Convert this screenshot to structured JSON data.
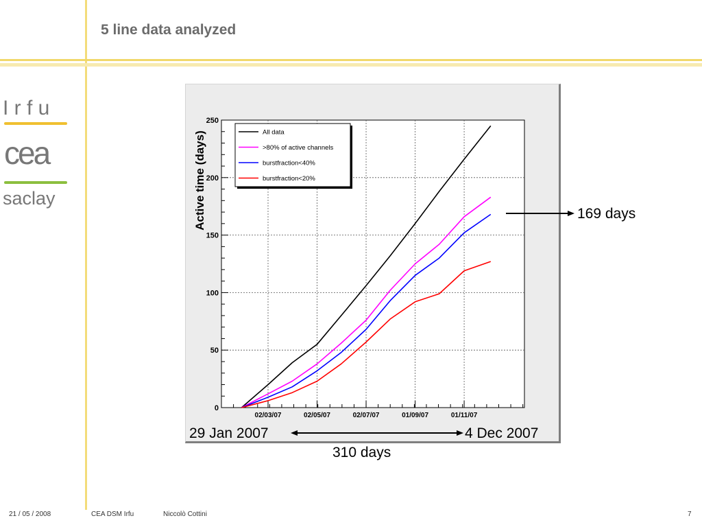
{
  "slide": {
    "title": "5 line data analyzed",
    "footer": {
      "date": "21 / 05 / 2008",
      "org": "CEA DSM Irfu",
      "author": "Niccolò Cottini",
      "page": "7"
    },
    "logo": {
      "line1": "I r f u",
      "line2": "cea",
      "line3": "saclay"
    }
  },
  "annotations": {
    "end_value": "169 days",
    "start_date": "29 Jan 2007",
    "end_date": "4 Dec 2007",
    "duration": "310 days"
  },
  "colors": {
    "accent": "#f1d86a",
    "all": "#000000",
    "active80": "#ff00ff",
    "burst40": "#0000ff",
    "burst20": "#ff0000"
  },
  "chart_data": {
    "type": "line",
    "title": "",
    "xlabel": "",
    "ylabel": "Active time (days)",
    "xlim": [
      "2007-01-03",
      "2008-01-15"
    ],
    "ylim": [
      0,
      250
    ],
    "yticks": [
      0,
      50,
      100,
      150,
      200,
      250
    ],
    "xticks": [
      "2007-03-02",
      "2007-05-02",
      "2007-07-02",
      "2007-09-01",
      "2007-11-01"
    ],
    "xtick_labels": [
      "02/03/07",
      "02/05/07",
      "02/07/07",
      "01/09/07",
      "01/11/07"
    ],
    "grid": true,
    "legend_position": "top-left",
    "series": [
      {
        "name": "All data",
        "color": "#000000",
        "x": [
          "2007-01-28",
          "2007-03-02",
          "2007-04-01",
          "2007-05-02",
          "2007-06-01",
          "2007-07-02",
          "2007-08-01",
          "2007-09-01",
          "2007-10-01",
          "2007-11-01",
          "2007-12-04"
        ],
        "y": [
          0,
          20,
          39,
          55,
          80,
          106,
          132,
          160,
          188,
          216,
          245
        ]
      },
      {
        "name": ">80% of active channels",
        "color": "#ff00ff",
        "x": [
          "2007-01-28",
          "2007-03-02",
          "2007-04-01",
          "2007-05-02",
          "2007-06-01",
          "2007-07-02",
          "2007-08-01",
          "2007-09-01",
          "2007-10-01",
          "2007-11-01",
          "2007-12-04"
        ],
        "y": [
          0,
          12,
          23,
          38,
          56,
          76,
          102,
          125,
          142,
          166,
          183
        ]
      },
      {
        "name": "burstfraction<40%",
        "color": "#0000ff",
        "x": [
          "2007-01-28",
          "2007-03-02",
          "2007-04-01",
          "2007-05-02",
          "2007-06-01",
          "2007-07-02",
          "2007-08-01",
          "2007-09-01",
          "2007-10-01",
          "2007-11-01",
          "2007-12-04"
        ],
        "y": [
          0,
          9,
          18,
          32,
          48,
          68,
          93,
          115,
          130,
          152,
          168
        ]
      },
      {
        "name": "burstfraction<20%",
        "color": "#ff0000",
        "x": [
          "2007-01-28",
          "2007-03-02",
          "2007-04-01",
          "2007-05-02",
          "2007-06-01",
          "2007-07-02",
          "2007-08-01",
          "2007-09-01",
          "2007-10-01",
          "2007-11-01",
          "2007-12-04"
        ],
        "y": [
          0,
          6,
          13,
          23,
          38,
          57,
          77,
          92,
          99,
          119,
          127
        ]
      }
    ]
  }
}
